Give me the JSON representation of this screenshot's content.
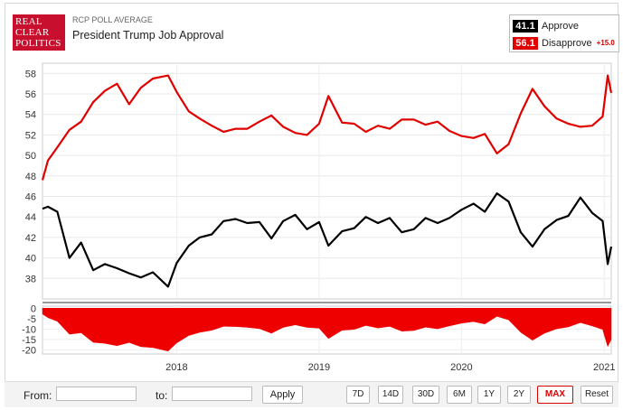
{
  "header": {
    "logo_lines": [
      "REAL",
      "CLEAR",
      "POLITICS"
    ],
    "subtitle": "RCP POLL AVERAGE",
    "title": "President Trump Job Approval"
  },
  "legend": {
    "approve_value": "41.1",
    "approve_label": "Approve",
    "disapprove_value": "56.1",
    "disapprove_label": "Disapprove",
    "spread": "+15.0",
    "approve_color": "#000000",
    "disapprove_color": "#e00000"
  },
  "controls": {
    "from_label": "From:",
    "to_label": "to:",
    "apply_label": "Apply",
    "ranges": [
      "7D",
      "14D",
      "30D",
      "6M",
      "1Y",
      "2Y",
      "MAX",
      "Reset"
    ],
    "active_range": "MAX"
  },
  "chart_data": {
    "type": "line",
    "x_tick_labels": [
      "2018",
      "2019",
      "2020",
      "2021"
    ],
    "x_tick_dates": [
      "2018-01-01",
      "2019-01-01",
      "2020-01-01",
      "2021-01-01"
    ],
    "x_range": [
      "2017-01-22",
      "2021-01-19"
    ],
    "main_ylim": [
      36,
      59
    ],
    "main_yticks": [
      38,
      40,
      42,
      44,
      46,
      48,
      50,
      52,
      54,
      56,
      58
    ],
    "spread_ylim": [
      -22,
      1
    ],
    "spread_yticks": [
      0,
      -5,
      -10,
      -15,
      -20
    ],
    "grid": true,
    "legend_position": "top-right",
    "series": [
      {
        "name": "Approve",
        "color": "#000000",
        "points": [
          [
            "2017-01-22",
            44.8
          ],
          [
            "2017-02-05",
            45.0
          ],
          [
            "2017-03-01",
            44.5
          ],
          [
            "2017-04-01",
            40.0
          ],
          [
            "2017-05-01",
            41.5
          ],
          [
            "2017-06-01",
            38.8
          ],
          [
            "2017-07-01",
            39.4
          ],
          [
            "2017-08-01",
            39.0
          ],
          [
            "2017-09-01",
            38.5
          ],
          [
            "2017-10-01",
            38.1
          ],
          [
            "2017-11-01",
            38.6
          ],
          [
            "2017-12-10",
            37.2
          ],
          [
            "2018-01-01",
            39.5
          ],
          [
            "2018-02-01",
            41.2
          ],
          [
            "2018-03-01",
            42.0
          ],
          [
            "2018-04-01",
            42.3
          ],
          [
            "2018-05-01",
            43.6
          ],
          [
            "2018-06-01",
            43.8
          ],
          [
            "2018-07-01",
            43.4
          ],
          [
            "2018-08-01",
            43.5
          ],
          [
            "2018-09-01",
            41.9
          ],
          [
            "2018-10-01",
            43.6
          ],
          [
            "2018-11-01",
            44.2
          ],
          [
            "2018-12-01",
            42.8
          ],
          [
            "2019-01-01",
            43.5
          ],
          [
            "2019-01-25",
            41.2
          ],
          [
            "2019-03-01",
            42.6
          ],
          [
            "2019-04-01",
            42.9
          ],
          [
            "2019-05-01",
            44.0
          ],
          [
            "2019-06-01",
            43.4
          ],
          [
            "2019-07-01",
            43.9
          ],
          [
            "2019-08-01",
            42.5
          ],
          [
            "2019-09-01",
            42.8
          ],
          [
            "2019-10-01",
            43.9
          ],
          [
            "2019-11-01",
            43.4
          ],
          [
            "2019-12-01",
            43.9
          ],
          [
            "2020-01-01",
            44.7
          ],
          [
            "2020-02-01",
            45.3
          ],
          [
            "2020-03-01",
            44.5
          ],
          [
            "2020-04-01",
            46.3
          ],
          [
            "2020-05-01",
            45.5
          ],
          [
            "2020-06-01",
            42.5
          ],
          [
            "2020-07-01",
            41.1
          ],
          [
            "2020-08-01",
            42.8
          ],
          [
            "2020-09-01",
            43.7
          ],
          [
            "2020-10-01",
            44.1
          ],
          [
            "2020-11-01",
            45.9
          ],
          [
            "2020-12-01",
            44.4
          ],
          [
            "2020-12-28",
            43.6
          ],
          [
            "2021-01-10",
            39.4
          ],
          [
            "2021-01-19",
            41.1
          ]
        ]
      },
      {
        "name": "Disapprove",
        "color": "#e00000",
        "points": [
          [
            "2017-01-22",
            47.6
          ],
          [
            "2017-02-05",
            49.5
          ],
          [
            "2017-03-01",
            50.8
          ],
          [
            "2017-04-01",
            52.5
          ],
          [
            "2017-05-01",
            53.3
          ],
          [
            "2017-06-01",
            55.2
          ],
          [
            "2017-07-01",
            56.3
          ],
          [
            "2017-08-01",
            57.0
          ],
          [
            "2017-09-01",
            55.0
          ],
          [
            "2017-10-01",
            56.6
          ],
          [
            "2017-11-01",
            57.5
          ],
          [
            "2017-12-10",
            57.8
          ],
          [
            "2018-01-01",
            56.2
          ],
          [
            "2018-02-01",
            54.3
          ],
          [
            "2018-03-01",
            53.6
          ],
          [
            "2018-04-01",
            52.9
          ],
          [
            "2018-05-01",
            52.3
          ],
          [
            "2018-06-01",
            52.6
          ],
          [
            "2018-07-01",
            52.6
          ],
          [
            "2018-08-01",
            53.3
          ],
          [
            "2018-09-01",
            53.9
          ],
          [
            "2018-10-01",
            52.8
          ],
          [
            "2018-11-01",
            52.2
          ],
          [
            "2018-12-01",
            52.0
          ],
          [
            "2019-01-01",
            53.1
          ],
          [
            "2019-01-25",
            55.8
          ],
          [
            "2019-03-01",
            53.2
          ],
          [
            "2019-04-01",
            53.1
          ],
          [
            "2019-05-01",
            52.3
          ],
          [
            "2019-06-01",
            52.9
          ],
          [
            "2019-07-01",
            52.6
          ],
          [
            "2019-08-01",
            53.5
          ],
          [
            "2019-09-01",
            53.5
          ],
          [
            "2019-10-01",
            53.0
          ],
          [
            "2019-11-01",
            53.3
          ],
          [
            "2019-12-01",
            52.4
          ],
          [
            "2020-01-01",
            51.9
          ],
          [
            "2020-02-01",
            51.7
          ],
          [
            "2020-03-01",
            52.1
          ],
          [
            "2020-04-01",
            50.2
          ],
          [
            "2020-05-01",
            51.1
          ],
          [
            "2020-06-01",
            54.1
          ],
          [
            "2020-07-01",
            56.5
          ],
          [
            "2020-08-01",
            54.8
          ],
          [
            "2020-09-01",
            53.6
          ],
          [
            "2020-10-01",
            53.1
          ],
          [
            "2020-11-01",
            52.8
          ],
          [
            "2020-12-01",
            52.9
          ],
          [
            "2020-12-28",
            53.8
          ],
          [
            "2021-01-10",
            57.8
          ],
          [
            "2021-01-19",
            56.1
          ]
        ]
      }
    ]
  }
}
